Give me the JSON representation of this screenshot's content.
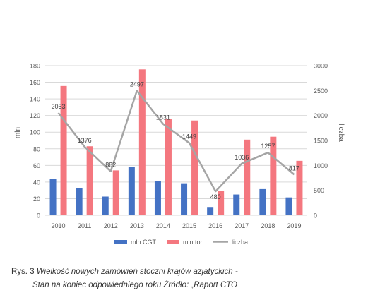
{
  "chart_data": {
    "type": "bar",
    "categories": [
      "2010",
      "2011",
      "2012",
      "2013",
      "2014",
      "2015",
      "2016",
      "2017",
      "2018",
      "2019"
    ],
    "series": [
      {
        "name": "mln CGT",
        "type": "bar",
        "axis": "left",
        "values": [
          44,
          33,
          22.5,
          58,
          41,
          38.5,
          10,
          25,
          31.5,
          21.5
        ]
      },
      {
        "name": "mln ton",
        "type": "bar",
        "axis": "left",
        "values": [
          155.5,
          83,
          54,
          175.5,
          116,
          114,
          29,
          91,
          94.5,
          65.5
        ]
      },
      {
        "name": "liczba",
        "type": "line",
        "axis": "right",
        "values": [
          2053,
          1376,
          882,
          2497,
          1831,
          1449,
          480,
          1036,
          1257,
          817
        ]
      }
    ],
    "data_labels": [
      "2053",
      "1376",
      "882",
      "2497",
      "1831",
      "1449",
      "480",
      "1036",
      "1257",
      "817"
    ],
    "ylabel": "mln",
    "y2label": "liczba",
    "ylim": [
      0,
      180
    ],
    "y2lim": [
      0,
      3000
    ],
    "yticks": [
      "0",
      "20",
      "40",
      "60",
      "80",
      "100",
      "120",
      "140",
      "160",
      "180"
    ],
    "y2ticks": [
      "0",
      "500",
      "1000",
      "1500",
      "2000",
      "2500",
      "3000"
    ],
    "grid": true,
    "legend_position": "bottom"
  },
  "colors": {
    "mln_cgt": "#4472c4",
    "mln_ton": "#f4777f",
    "liczba": "#a5a5a5",
    "grid": "#d9d9d9",
    "text": "#595959"
  },
  "caption": {
    "prefix": "Rys. 3 ",
    "line1_italic": "Wielkość nowych zamówień stoczni krajów azjatyckich -",
    "line2": "Stan na koniec odpowiedniego roku Źródło: „Raport CTO"
  }
}
